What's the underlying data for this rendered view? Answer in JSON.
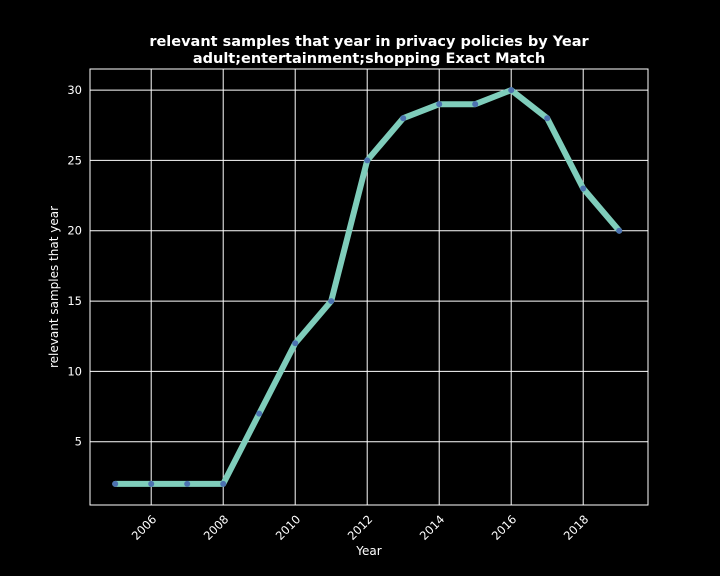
{
  "chart_data": {
    "type": "line",
    "title_lines": [
      "relevant samples that year in privacy policies by Year",
      "adult;entertainment;shopping Exact Match"
    ],
    "xlabel": "Year",
    "ylabel": "relevant samples that year",
    "xlim": [
      2004.3,
      2019.8
    ],
    "ylim": [
      0.5,
      31.5
    ],
    "x_ticks": [
      2006,
      2008,
      2010,
      2012,
      2014,
      2016,
      2018
    ],
    "y_ticks": [
      5,
      10,
      15,
      20,
      25,
      30
    ],
    "grid": true,
    "background_color": "#000000",
    "line_color": "#7fcdbb",
    "marker_color": "#4c72b0",
    "series": [
      {
        "x": [
          2005,
          2006,
          2007,
          2008,
          2009,
          2010,
          2011,
          2012,
          2013,
          2014,
          2015,
          2016,
          2017,
          2018,
          2019
        ],
        "y": [
          2,
          2,
          2,
          2,
          7,
          12,
          15,
          25,
          28,
          29,
          29,
          30,
          28,
          23,
          20
        ]
      }
    ]
  }
}
